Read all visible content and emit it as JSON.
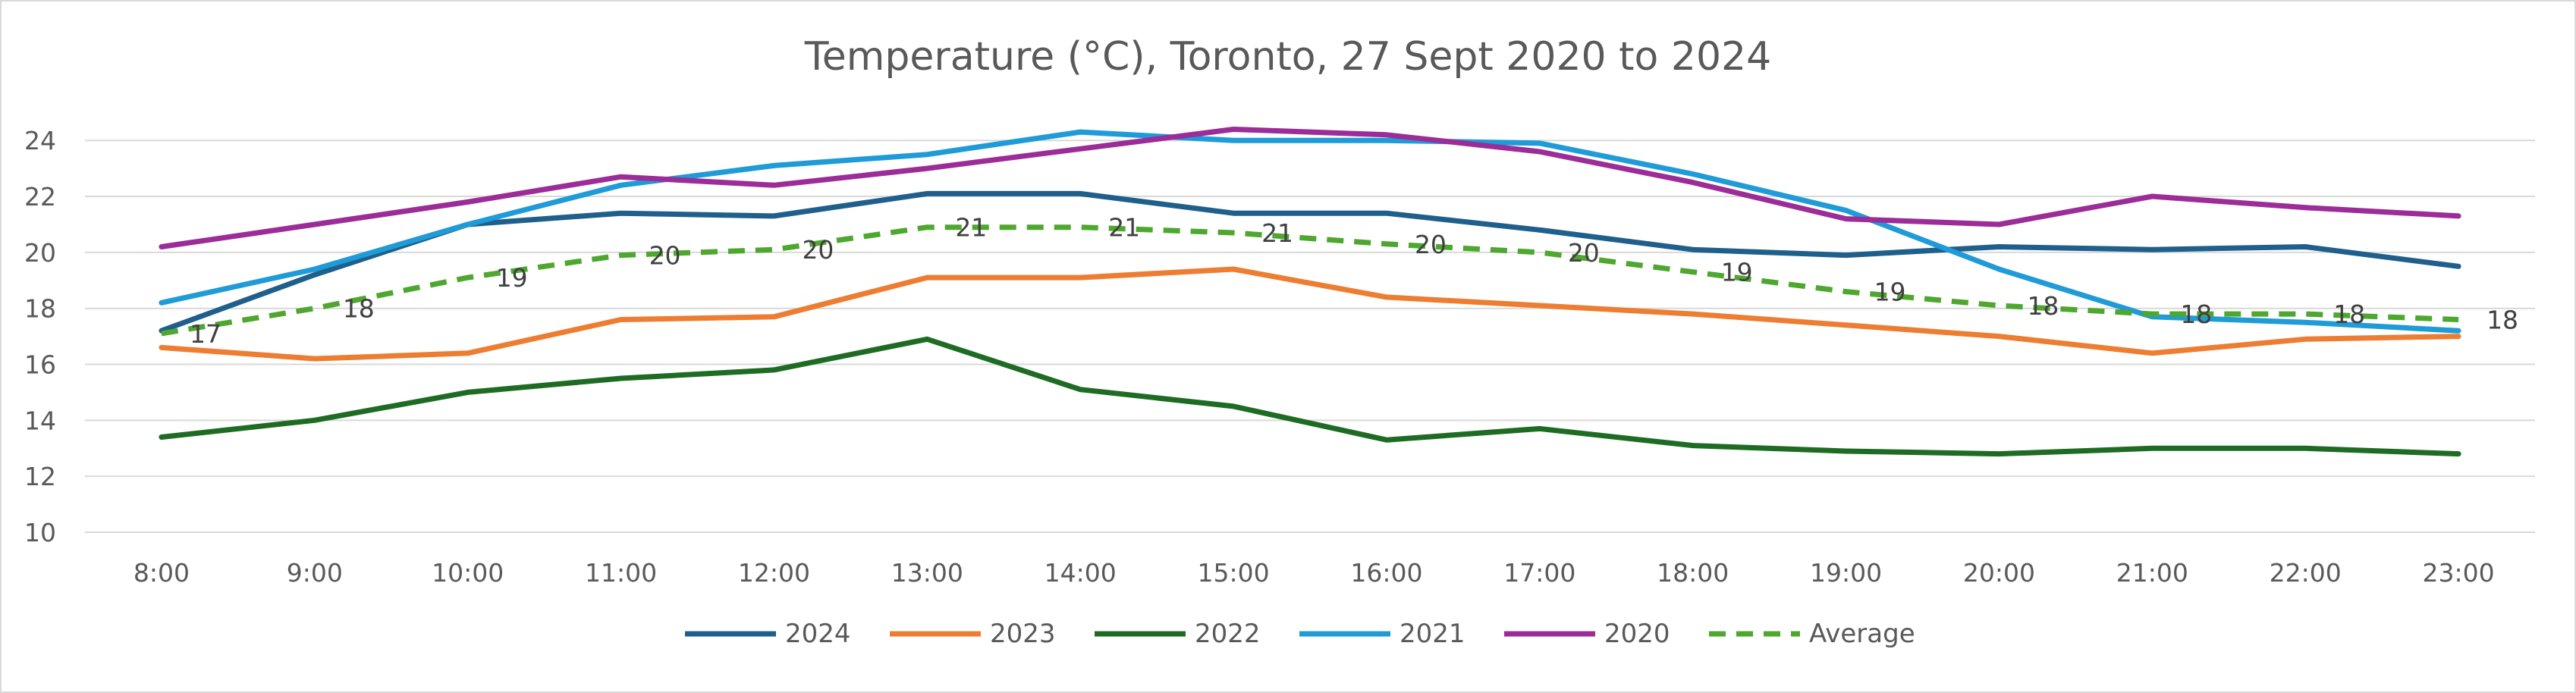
{
  "chart_data": {
    "type": "line",
    "title": "Temperature (°C), Toronto, 27 Sept 2020 to 2024",
    "xlabel": "",
    "ylabel": "",
    "categories": [
      "8:00",
      "9:00",
      "10:00",
      "11:00",
      "12:00",
      "13:00",
      "14:00",
      "15:00",
      "16:00",
      "17:00",
      "18:00",
      "19:00",
      "20:00",
      "21:00",
      "22:00",
      "23:00"
    ],
    "ylim": [
      10,
      24
    ],
    "yticks": [
      10,
      12,
      14,
      16,
      18,
      20,
      22,
      24
    ],
    "grid": true,
    "legend_position": "bottom",
    "series": [
      {
        "name": "2024",
        "color": "#1f5f8b",
        "dashed": false,
        "values": [
          17.2,
          19.2,
          21.0,
          21.4,
          21.3,
          22.1,
          22.1,
          21.4,
          21.4,
          20.8,
          20.1,
          19.9,
          20.2,
          20.1,
          20.2,
          19.5
        ]
      },
      {
        "name": "2023",
        "color": "#ed7d31",
        "dashed": false,
        "values": [
          16.6,
          16.2,
          16.4,
          17.6,
          17.7,
          19.1,
          19.1,
          19.4,
          18.4,
          18.1,
          17.8,
          17.4,
          17.0,
          16.4,
          16.9,
          17.0
        ]
      },
      {
        "name": "2022",
        "color": "#1e6b23",
        "dashed": false,
        "values": [
          13.4,
          14.0,
          15.0,
          15.5,
          15.8,
          16.9,
          15.1,
          14.5,
          13.3,
          13.7,
          13.1,
          12.9,
          12.8,
          13.0,
          13.0,
          12.8
        ]
      },
      {
        "name": "2021",
        "color": "#1f9bd7",
        "dashed": false,
        "values": [
          18.2,
          19.4,
          21.0,
          22.4,
          23.1,
          23.5,
          24.3,
          24.0,
          24.0,
          23.9,
          22.8,
          21.5,
          19.4,
          17.7,
          17.5,
          17.2
        ]
      },
      {
        "name": "2020",
        "color": "#9b2c98",
        "dashed": false,
        "values": [
          20.2,
          21.0,
          21.8,
          22.7,
          22.4,
          23.0,
          23.7,
          24.4,
          24.2,
          23.6,
          22.5,
          21.2,
          21.0,
          22.0,
          21.6,
          21.3
        ]
      },
      {
        "name": "Average",
        "color": "#4ea72e",
        "dashed": true,
        "values": [
          17.1,
          18.0,
          19.1,
          19.9,
          20.1,
          20.9,
          20.9,
          20.7,
          20.3,
          20.0,
          19.3,
          18.6,
          18.1,
          17.8,
          17.8,
          17.6
        ],
        "data_labels": [
          "17",
          "18",
          "19",
          "20",
          "20",
          "21",
          "21",
          "21",
          "20",
          "20",
          "19",
          "19",
          "18",
          "18",
          "18",
          "18"
        ]
      }
    ]
  }
}
